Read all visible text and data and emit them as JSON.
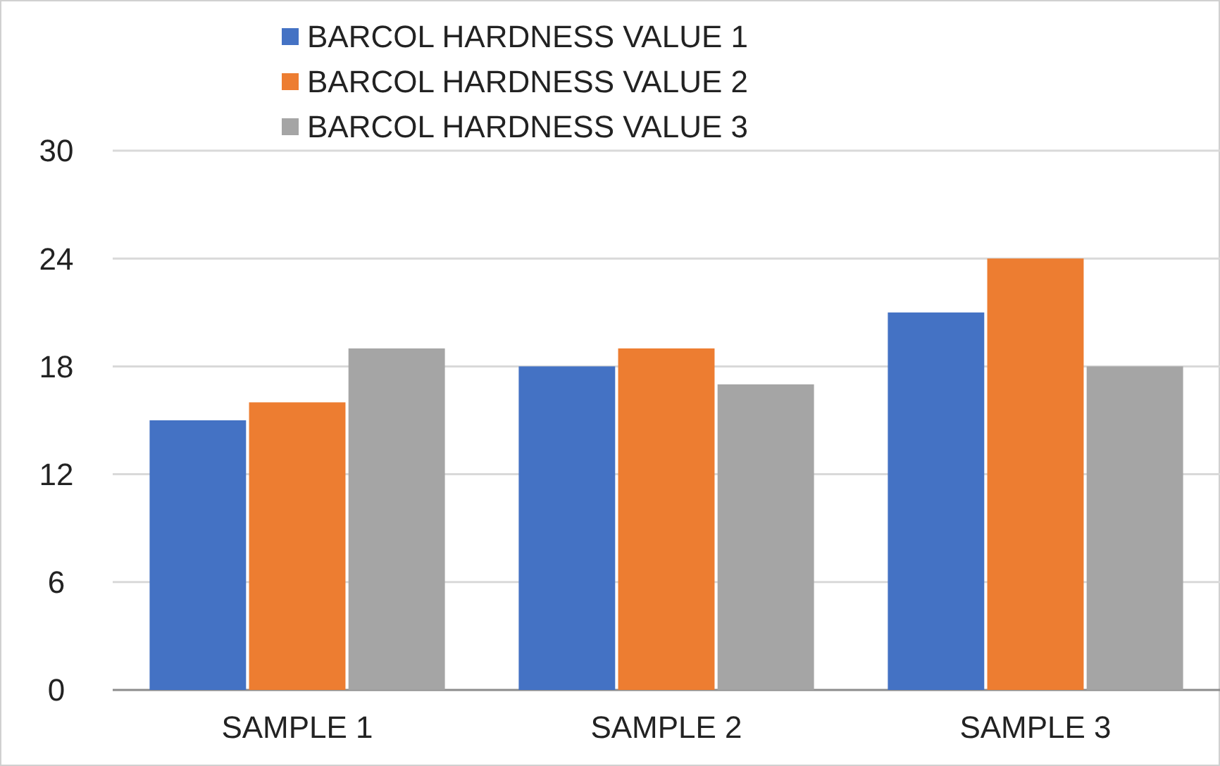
{
  "chart_data": {
    "type": "bar",
    "categories": [
      "SAMPLE 1",
      "SAMPLE 2",
      "SAMPLE 3"
    ],
    "series": [
      {
        "name": "BARCOL HARDNESS VALUE 1",
        "color": "#4472c4",
        "values": [
          15,
          18,
          21
        ]
      },
      {
        "name": "BARCOL HARDNESS VALUE 2",
        "color": "#ed7d31",
        "values": [
          16,
          19,
          24
        ]
      },
      {
        "name": "BARCOL HARDNESS VALUE 3",
        "color": "#a5a5a5",
        "values": [
          19,
          17,
          18
        ]
      }
    ],
    "ylim": [
      0,
      30
    ],
    "yticks": [
      0,
      6,
      12,
      18,
      24,
      30
    ],
    "grid": "y",
    "legend": "top"
  }
}
